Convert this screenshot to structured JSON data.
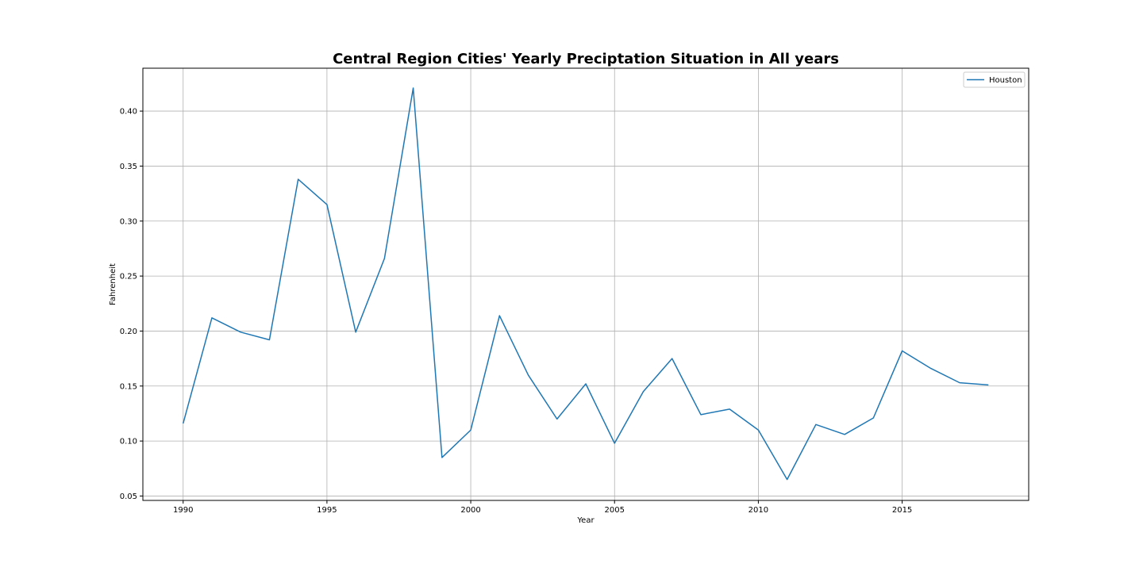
{
  "chart_data": {
    "type": "line",
    "title": "Central Region Cities' Yearly Preciptation Situation in All years",
    "xlabel": "Year",
    "ylabel": "Fahrenheit",
    "xlim": [
      1988.6,
      2019.4
    ],
    "ylim": [
      0.046,
      0.439
    ],
    "x_ticks": [
      1990,
      1995,
      2000,
      2005,
      2010,
      2015
    ],
    "y_ticks": [
      0.05,
      0.1,
      0.15,
      0.2,
      0.25,
      0.3,
      0.35,
      0.4
    ],
    "y_tick_labels": [
      "0.05",
      "0.10",
      "0.15",
      "0.20",
      "0.25",
      "0.30",
      "0.35",
      "0.40"
    ],
    "grid": true,
    "legend_position": "top-right",
    "series": [
      {
        "name": "Houston",
        "color": "#1f77b4",
        "x": [
          1990,
          1991,
          1992,
          1993,
          1994,
          1995,
          1996,
          1997,
          1998,
          1999,
          2000,
          2001,
          2002,
          2003,
          2004,
          2005,
          2006,
          2007,
          2008,
          2009,
          2010,
          2011,
          2012,
          2013,
          2014,
          2015,
          2016,
          2017,
          2018
        ],
        "values": [
          0.116,
          0.212,
          0.199,
          0.192,
          0.338,
          0.315,
          0.199,
          0.266,
          0.421,
          0.085,
          0.11,
          0.214,
          0.16,
          0.12,
          0.152,
          0.098,
          0.145,
          0.175,
          0.124,
          0.129,
          0.11,
          0.065,
          0.115,
          0.106,
          0.121,
          0.182,
          0.166,
          0.153,
          0.151
        ]
      }
    ]
  }
}
